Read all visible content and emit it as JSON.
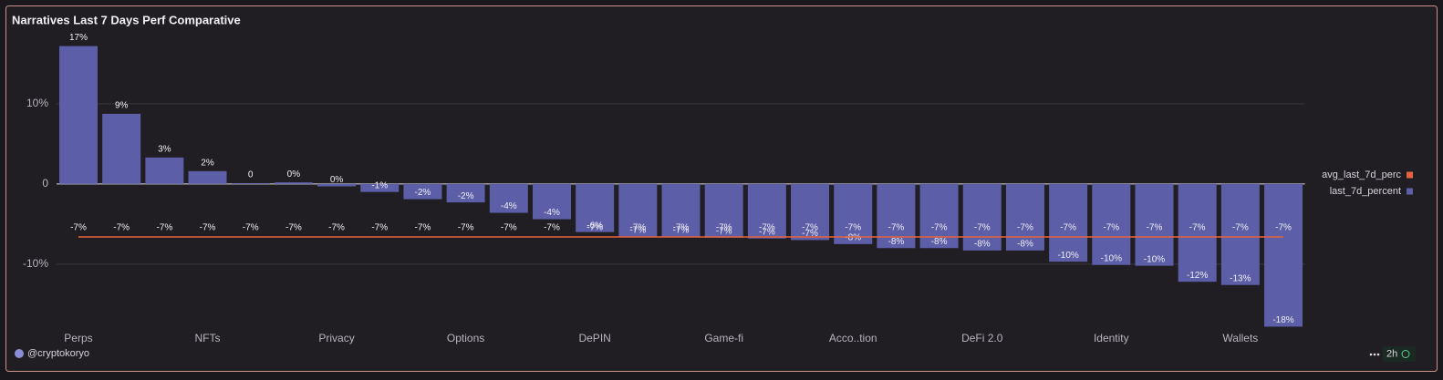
{
  "chart_data": {
    "type": "bar",
    "title": "Narratives Last 7 Days Perf Comparative",
    "categories": [
      "Perps",
      null,
      null,
      "NFTs",
      null,
      null,
      "Privacy",
      null,
      null,
      "Options",
      null,
      null,
      "DePIN",
      null,
      null,
      "Game-fi",
      null,
      null,
      "Acco..tion",
      null,
      null,
      "DeFi 2.0",
      null,
      null,
      "Identity",
      null,
      null,
      "Wallets",
      null
    ],
    "series": [
      {
        "name": "avg_last_7d_perc",
        "type": "line",
        "color": "#e8643c",
        "values": [
          -6.6,
          -6.6,
          -6.6,
          -6.6,
          -6.6,
          -6.6,
          -6.6,
          -6.6,
          -6.6,
          -6.6,
          -6.6,
          -6.6,
          -6.6,
          -6.6,
          -6.6,
          -6.6,
          -6.6,
          -6.6,
          -6.6,
          -6.6,
          -6.6,
          -6.6,
          -6.6,
          -6.6,
          -6.6,
          -6.6,
          -6.6,
          -6.6,
          -6.6
        ],
        "value_labels": [
          "-7%",
          "-7%",
          "-7%",
          "-7%",
          "-7%",
          "-7%",
          "-7%",
          "-7%",
          "-7%",
          "-7%",
          "-7%",
          "-7%",
          "-7%",
          "-7%",
          "-7%",
          "-7%",
          "-7%",
          "-7%",
          "-7%",
          "-7%",
          "-7%",
          "-7%",
          "-7%",
          "-7%",
          "-7%",
          "-7%",
          "-7%",
          "-7%",
          "-7%"
        ]
      },
      {
        "name": "last_7d_percent",
        "type": "bar",
        "color": "#5c5ea8",
        "values": [
          17.2,
          8.75,
          3.3,
          1.6,
          0.1,
          0.2,
          -0.3,
          -1.0,
          -1.9,
          -2.3,
          -3.6,
          -4.4,
          -6.0,
          -6.6,
          -6.6,
          -6.7,
          -6.8,
          -7.0,
          -7.5,
          -8.0,
          -8.0,
          -8.3,
          -8.3,
          -9.7,
          -10.1,
          -10.2,
          -12.2,
          -12.6,
          -17.8
        ],
        "value_labels": [
          "17%",
          "9%",
          "3%",
          "2%",
          "0",
          "0%",
          "0%",
          "-1%",
          "-2%",
          "-2%",
          "-4%",
          "-4%",
          "-6%",
          "-7%",
          "-7%",
          "-7%",
          "-7%",
          "-7%",
          "-8%",
          "-8%",
          "-8%",
          "-8%",
          "-8%",
          "-10%",
          "-10%",
          "-10%",
          "-12%",
          "-13%",
          "-18%"
        ]
      }
    ],
    "ylim": [
      -18.2,
      18.4
    ],
    "yticks": [
      {
        "value": 10,
        "label": "10%"
      },
      0,
      {
        "value": -10,
        "label": "-10%"
      }
    ],
    "grid": true,
    "legend": "right",
    "source": "@cryptokoryo",
    "age": "2h"
  }
}
